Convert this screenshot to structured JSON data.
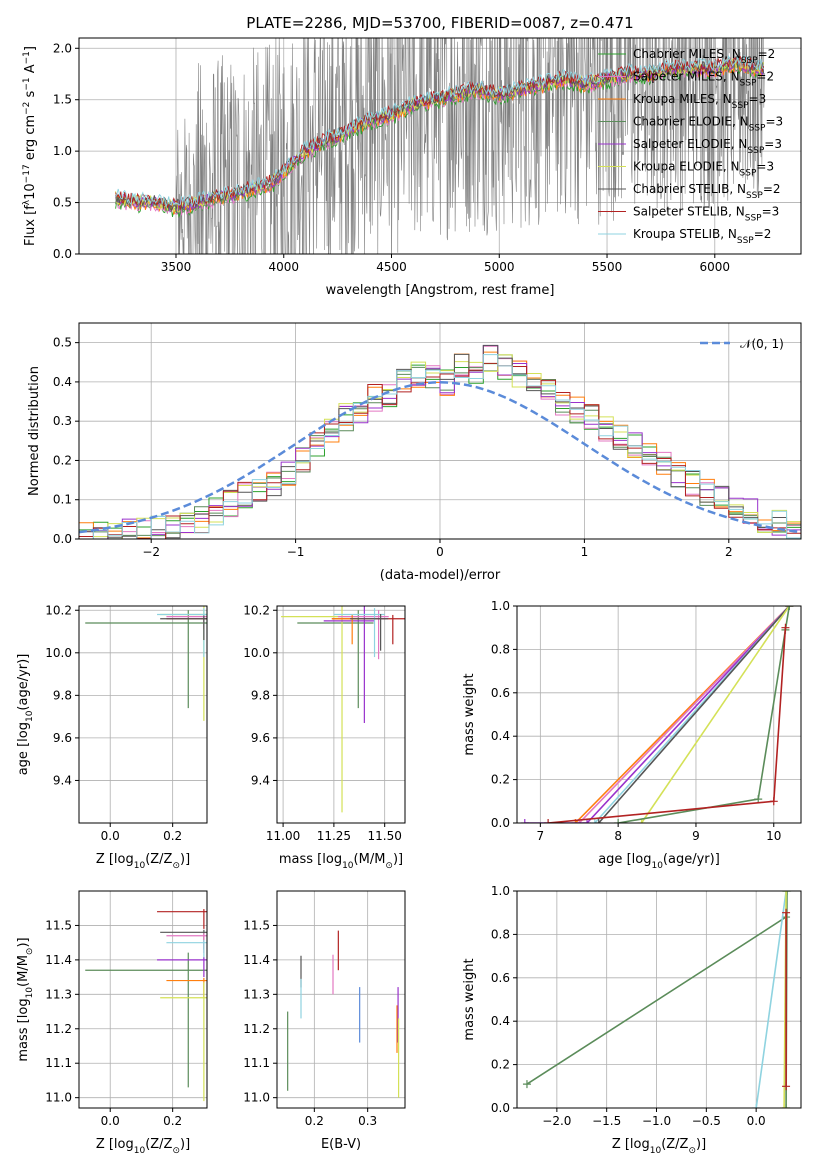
{
  "figure_title": "PLATE=2286, MJD=53700, FIBERID=0087, z=0.471",
  "colors": {
    "chabrier_miles": "#2ca02c",
    "salpeter_miles": "#e377c2",
    "kroupa_miles": "#ff7f0e",
    "chabrier_elodie": "#5b8c5a",
    "salpeter_elodie": "#9932cc",
    "kroupa_elodie": "#d4e157",
    "chabrier_stelib": "#555555",
    "salpeter_stelib": "#b22222",
    "kroupa_stelib": "#8fd3e0",
    "data": "#808080",
    "normal": "#5b8bd9"
  },
  "chart_data": [
    {
      "id": "spectrum",
      "type": "line",
      "title": "PLATE=2286, MJD=53700, FIBERID=0087, z=0.471",
      "xlabel": "wavelength [Angstrom, rest frame]",
      "ylabel": "Flux [f_λ 10^-17 erg cm^-2 s^-1 A^-1]",
      "ylabel_parts": [
        "Flux [f",
        "λ",
        "10",
        "−17",
        " erg cm",
        "−2",
        " s",
        "−1",
        " A",
        "−1",
        "]"
      ],
      "xlim": [
        3050,
        6400
      ],
      "ylim": [
        0,
        2.1
      ],
      "xticks": [
        3500,
        4000,
        4500,
        5000,
        5500,
        6000
      ],
      "yticks": [
        0.0,
        0.5,
        1.0,
        1.5,
        2.0
      ],
      "model_curve": {
        "x": [
          3200,
          3300,
          3400,
          3500,
          3600,
          3700,
          3800,
          3900,
          3950,
          4000,
          4100,
          4200,
          4300,
          4400,
          4500,
          4600,
          4700,
          4800,
          4900,
          5000,
          5100,
          5200,
          5300,
          5400,
          5500,
          5600,
          5700,
          5800,
          5900,
          6000,
          6100,
          6200
        ],
        "y": [
          0.55,
          0.5,
          0.5,
          0.45,
          0.5,
          0.55,
          0.6,
          0.65,
          0.7,
          0.8,
          1.0,
          1.1,
          1.2,
          1.3,
          1.35,
          1.45,
          1.5,
          1.55,
          1.6,
          1.55,
          1.6,
          1.65,
          1.7,
          1.65,
          1.7,
          1.75,
          1.75,
          1.8,
          1.8,
          1.8,
          1.85,
          1.8
        ]
      },
      "series": [
        {
          "name": "Chabrier MILES, N_SSP=2",
          "label": "Chabrier MILES, N",
          "nssp": "=2",
          "color_key": "chabrier_miles"
        },
        {
          "name": "Salpeter MILES, N_SSP=2",
          "label": "Salpeter MILES, N",
          "nssp": "=2",
          "color_key": "salpeter_miles"
        },
        {
          "name": "Kroupa MILES, N_SSP=3",
          "label": "Kroupa MILES, N",
          "nssp": "=3",
          "color_key": "kroupa_miles"
        },
        {
          "name": "Chabrier ELODIE, N_SSP=3",
          "label": "Chabrier ELODIE, N",
          "nssp": "=3",
          "color_key": "chabrier_elodie"
        },
        {
          "name": "Salpeter ELODIE, N_SSP=3",
          "label": "Salpeter ELODIE, N",
          "nssp": "=3",
          "color_key": "salpeter_elodie"
        },
        {
          "name": "Kroupa ELODIE, N_SSP=3",
          "label": "Kroupa ELODIE, N",
          "nssp": "=3",
          "color_key": "kroupa_elodie"
        },
        {
          "name": "Chabrier STELIB, N_SSP=2",
          "label": "Chabrier STELIB, N",
          "nssp": "=2",
          "color_key": "chabrier_stelib"
        },
        {
          "name": "Salpeter STELIB, N_SSP=3",
          "label": "Salpeter STELIB, N",
          "nssp": "=3",
          "color_key": "salpeter_stelib"
        },
        {
          "name": "Kroupa STELIB, N_SSP=2",
          "label": "Kroupa STELIB, N",
          "nssp": "=2",
          "color_key": "kroupa_stelib"
        }
      ],
      "legend_subscript": "SSP",
      "legend_location": "top-right"
    },
    {
      "id": "residuals",
      "type": "histogram",
      "xlabel": "(data-model)/error",
      "ylabel": "Normed distribution",
      "xlim": [
        -2.5,
        2.5
      ],
      "ylim": [
        0,
        0.55
      ],
      "xticks": [
        -2,
        -1,
        0,
        1,
        2
      ],
      "xtick_labels": [
        "−2",
        "−1",
        "0",
        "1",
        "2"
      ],
      "yticks": [
        0.0,
        0.1,
        0.2,
        0.3,
        0.4,
        0.5
      ],
      "bin_width": 0.1,
      "bin_start": -2.5,
      "hist_ref": [
        0.01,
        0.01,
        0.02,
        0.02,
        0.02,
        0.03,
        0.03,
        0.04,
        0.05,
        0.07,
        0.09,
        0.11,
        0.12,
        0.14,
        0.17,
        0.2,
        0.24,
        0.28,
        0.31,
        0.33,
        0.36,
        0.37,
        0.4,
        0.42,
        0.41,
        0.4,
        0.44,
        0.43,
        0.46,
        0.44,
        0.42,
        0.4,
        0.38,
        0.35,
        0.33,
        0.31,
        0.28,
        0.26,
        0.24,
        0.21,
        0.19,
        0.16,
        0.14,
        0.12,
        0.1,
        0.08,
        0.07,
        0.05,
        0.04,
        0.02
      ],
      "normal_legend": "𝒩(0, 1)",
      "legend_location": "top-right"
    },
    {
      "id": "age_vs_Z",
      "type": "errorbar",
      "xlabel_parts": [
        "Z [log",
        "10",
        "(Z/Z",
        "⊙",
        ")]"
      ],
      "ylabel_parts": [
        "age  [log",
        "10",
        "(age/yr)]"
      ],
      "xlim": [
        -0.1,
        0.31
      ],
      "ylim": [
        9.2,
        10.22
      ],
      "xticks": [
        0.0,
        0.2
      ],
      "yticks": [
        9.4,
        9.6,
        9.8,
        10.0,
        10.2
      ],
      "points": [
        {
          "x": 0.25,
          "y": 10.14,
          "xerr": 0.33,
          "yerr": 0.4,
          "color_key": "chabrier_elodie"
        },
        {
          "x": 0.3,
          "y": 10.18,
          "xerr": 0.14,
          "yerr": 0.5,
          "color_key": "kroupa_elodie"
        },
        {
          "x": 0.3,
          "y": 10.17,
          "xerr": 0.12,
          "yerr": 0.05,
          "color_key": "salpeter_miles"
        },
        {
          "x": 0.3,
          "y": 10.16,
          "xerr": 0.12,
          "yerr": 0.05,
          "color_key": "salpeter_stelib"
        },
        {
          "x": 0.3,
          "y": 10.18,
          "xerr": 0.15,
          "yerr": 0.2,
          "color_key": "kroupa_stelib"
        },
        {
          "x": 0.3,
          "y": 10.16,
          "xerr": 0.14,
          "yerr": 0.1,
          "color_key": "chabrier_stelib"
        }
      ]
    },
    {
      "id": "age_vs_mass",
      "type": "errorbar",
      "xlabel_parts": [
        "mass [log",
        "10",
        "(M/M",
        "⊙",
        ")]"
      ],
      "xlim": [
        10.97,
        11.6
      ],
      "ylim": [
        9.2,
        10.22
      ],
      "xticks": [
        11.0,
        11.25,
        11.5
      ],
      "xtick_labels": [
        "11.00",
        "11.25",
        "11.50"
      ],
      "yticks": [
        9.4,
        9.6,
        9.8,
        10.0,
        10.2
      ],
      "points": [
        {
          "x": 11.37,
          "y": 10.14,
          "xerr": 0.3,
          "yerr": 0.4,
          "color_key": "chabrier_elodie"
        },
        {
          "x": 11.29,
          "y": 10.17,
          "xerr": 0.3,
          "yerr": 0.92,
          "color_key": "kroupa_elodie"
        },
        {
          "x": 11.4,
          "y": 10.15,
          "xerr": 0.2,
          "yerr": 0.48,
          "color_key": "salpeter_elodie"
        },
        {
          "x": 11.47,
          "y": 10.17,
          "xerr": 0.2,
          "yerr": 0.2,
          "color_key": "salpeter_miles"
        },
        {
          "x": 11.54,
          "y": 10.16,
          "xerr": 0.3,
          "yerr": 0.12,
          "color_key": "salpeter_stelib"
        },
        {
          "x": 11.34,
          "y": 10.16,
          "xerr": 0.1,
          "yerr": 0.12,
          "color_key": "kroupa_miles"
        },
        {
          "x": 11.45,
          "y": 10.18,
          "xerr": 0.2,
          "yerr": 0.2,
          "color_key": "kroupa_stelib"
        },
        {
          "x": 11.48,
          "y": 10.16,
          "xerr": 0.15,
          "yerr": 0.15,
          "color_key": "chabrier_stelib"
        }
      ]
    },
    {
      "id": "weight_vs_age",
      "type": "line",
      "xlabel_parts": [
        "age  [log",
        "10",
        "(age/yr)]"
      ],
      "ylabel": "mass weight",
      "xlim": [
        6.7,
        10.35
      ],
      "ylim": [
        0,
        1
      ],
      "xticks": [
        7,
        8,
        9,
        10
      ],
      "yticks": [
        0.0,
        0.2,
        0.4,
        0.6,
        0.8,
        1.0
      ],
      "series": [
        {
          "color_key": "kroupa_miles",
          "x": [
            7.45,
            10.2
          ],
          "y": [
            0.0,
            1.0
          ]
        },
        {
          "color_key": "salpeter_miles",
          "x": [
            7.5,
            10.2
          ],
          "y": [
            0.0,
            1.0
          ]
        },
        {
          "color_key": "salpeter_elodie",
          "x": [
            6.8,
            7.6,
            10.2
          ],
          "y": [
            0.0,
            0.0,
            1.0
          ]
        },
        {
          "color_key": "kroupa_stelib",
          "x": [
            7.7,
            10.2
          ],
          "y": [
            0.0,
            1.0
          ]
        },
        {
          "color_key": "chabrier_stelib",
          "x": [
            7.75,
            10.2
          ],
          "y": [
            0.0,
            1.0
          ]
        },
        {
          "color_key": "kroupa_elodie",
          "x": [
            8.3,
            10.2
          ],
          "y": [
            0.0,
            1.0
          ]
        },
        {
          "color_key": "chabrier_elodie",
          "x": [
            8.0,
            9.8,
            10.15,
            10.2
          ],
          "y": [
            0.0,
            0.11,
            0.89,
            1.0
          ]
        },
        {
          "color_key": "salpeter_stelib",
          "x": [
            7.1,
            10.0,
            10.15
          ],
          "y": [
            0.0,
            0.1,
            0.9
          ]
        }
      ]
    },
    {
      "id": "mass_vs_Z",
      "type": "errorbar",
      "xlabel_parts": [
        "Z [log",
        "10",
        "(Z/Z",
        "⊙",
        ")]"
      ],
      "ylabel_parts": [
        "mass [log",
        "10",
        "(M/M",
        "⊙",
        ")]"
      ],
      "xlim": [
        -0.1,
        0.31
      ],
      "ylim": [
        10.97,
        11.6
      ],
      "xticks": [
        0.0,
        0.2
      ],
      "yticks": [
        11.0,
        11.1,
        11.2,
        11.3,
        11.4,
        11.5
      ],
      "points": [
        {
          "x": 0.25,
          "y": 11.37,
          "xerr": 0.33,
          "yerr": 0.34,
          "color_key": "chabrier_elodie"
        },
        {
          "x": 0.3,
          "y": 11.54,
          "xerr": 0.15,
          "yerr": 0.05,
          "color_key": "salpeter_stelib"
        },
        {
          "x": 0.3,
          "y": 11.48,
          "xerr": 0.14,
          "yerr": 0.05,
          "color_key": "chabrier_stelib"
        },
        {
          "x": 0.3,
          "y": 11.47,
          "xerr": 0.12,
          "yerr": 0.05,
          "color_key": "salpeter_miles"
        },
        {
          "x": 0.3,
          "y": 11.45,
          "xerr": 0.12,
          "yerr": 0.05,
          "color_key": "kroupa_stelib"
        },
        {
          "x": 0.3,
          "y": 11.4,
          "xerr": 0.15,
          "yerr": 0.05,
          "color_key": "salpeter_elodie"
        },
        {
          "x": 0.3,
          "y": 11.34,
          "xerr": 0.12,
          "yerr": 0.05,
          "color_key": "kroupa_miles"
        },
        {
          "x": 0.3,
          "y": 11.29,
          "xerr": 0.14,
          "yerr": 0.3,
          "color_key": "kroupa_elodie"
        }
      ]
    },
    {
      "id": "mass_vs_ebv",
      "type": "errorbar",
      "xlabel": "E(B-V)",
      "xlim": [
        0.13,
        0.37
      ],
      "ylim": [
        10.97,
        11.6
      ],
      "xticks": [
        0.2,
        0.3
      ],
      "yticks": [
        11.0,
        11.1,
        11.2,
        11.3,
        11.4,
        11.5
      ],
      "points": [
        {
          "x": 0.15,
          "y": 11.22,
          "yerr": 0.2,
          "color_key": "chabrier_elodie"
        },
        {
          "x": 0.175,
          "y": 11.4,
          "yerr": 0.08,
          "color_key": "chabrier_stelib"
        },
        {
          "x": 0.175,
          "y": 11.33,
          "yerr": 0.1,
          "color_key": "kroupa_stelib"
        },
        {
          "x": 0.235,
          "y": 11.4,
          "yerr": 0.1,
          "color_key": "salpeter_miles"
        },
        {
          "x": 0.245,
          "y": 11.47,
          "yerr": 0.1,
          "color_key": "salpeter_stelib"
        },
        {
          "x": 0.285,
          "y": 11.3,
          "yerr": 0.14,
          "color_key": "normal"
        },
        {
          "x": 0.355,
          "y": 11.25,
          "yerr": 0.12,
          "color_key": "kroupa_miles"
        },
        {
          "x": 0.357,
          "y": 11.3,
          "yerr": 0.14,
          "color_key": "salpeter_elodie"
        },
        {
          "x": 0.358,
          "y": 11.2,
          "yerr": 0.2,
          "color_key": "kroupa_elodie"
        }
      ]
    },
    {
      "id": "weight_vs_Z",
      "type": "line",
      "xlabel_parts": [
        "Z [log",
        "10",
        "(Z/Z",
        "⊙",
        ")]"
      ],
      "ylabel": "mass weight",
      "xlim": [
        -2.4,
        0.45
      ],
      "ylim": [
        0,
        1
      ],
      "xticks": [
        -2.0,
        -1.5,
        -1.0,
        -0.5,
        0.0
      ],
      "xtick_labels": [
        "−2.0",
        "−1.5",
        "−1.0",
        "−0.5",
        "0.0"
      ],
      "yticks": [
        0.0,
        0.2,
        0.4,
        0.6,
        0.8,
        1.0
      ],
      "series": [
        {
          "color_key": "chabrier_elodie",
          "x": [
            -2.3,
            0.3,
            0.3,
            0.31
          ],
          "y": [
            0.11,
            0.88,
            0.0,
            1.0
          ]
        },
        {
          "color_key": "kroupa_stelib",
          "x": [
            0.0,
            0.3
          ],
          "y": [
            0.0,
            1.0
          ]
        },
        {
          "color_key": "kroupa_elodie",
          "x": [
            0.28,
            0.3
          ],
          "y": [
            0.0,
            1.0
          ]
        },
        {
          "color_key": "salpeter_stelib",
          "x": [
            0.3,
            0.3
          ],
          "y": [
            0.1,
            0.9
          ]
        }
      ]
    }
  ]
}
